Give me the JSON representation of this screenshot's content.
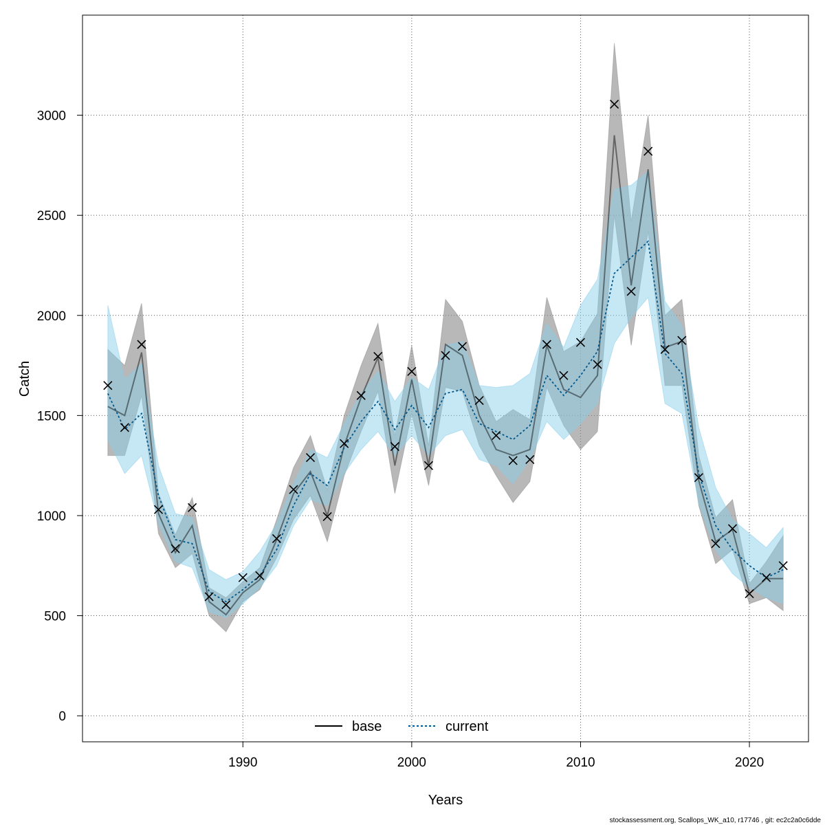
{
  "chart_data": {
    "type": "line",
    "xlabel": "Years",
    "ylabel": "Catch",
    "xlim": [
      1980.5,
      2023.5
    ],
    "ylim": [
      -130,
      3500
    ],
    "x_ticks": [
      1990,
      2000,
      2010,
      2020
    ],
    "y_ticks": [
      0,
      500,
      1000,
      1500,
      2000,
      2500,
      3000
    ],
    "grid": true,
    "legend_position": "bottom-center",
    "colors": {
      "base_line": "#000000",
      "base_band": "#8c8c8c",
      "current_line": "#00578c",
      "current_band": "#87ceeb",
      "observed_marker": "#000000",
      "grid": "#555555"
    },
    "x": [
      1982,
      1983,
      1984,
      1985,
      1986,
      1987,
      1988,
      1989,
      1990,
      1991,
      1992,
      1993,
      1994,
      1995,
      1996,
      1997,
      1998,
      1999,
      2000,
      2001,
      2002,
      2003,
      2004,
      2005,
      2006,
      2007,
      2008,
      2009,
      2010,
      2011,
      2012,
      2013,
      2014,
      2015,
      2016,
      2017,
      2018,
      2019,
      2020,
      2021,
      2022
    ],
    "observed": {
      "marker": "x",
      "values": [
        1650,
        1440,
        1855,
        1030,
        835,
        1040,
        595,
        555,
        690,
        700,
        885,
        1130,
        1290,
        995,
        1360,
        1600,
        1795,
        1345,
        1720,
        1250,
        1800,
        1845,
        1575,
        1400,
        1275,
        1280,
        1855,
        1700,
        1865,
        1755,
        3055,
        2120,
        2820,
        1830,
        1875,
        1190,
        860,
        935,
        610,
        690,
        750
      ]
    },
    "series": [
      {
        "name": "base",
        "line_style": "solid",
        "values": [
          1545,
          1500,
          1815,
          1010,
          815,
          950,
          570,
          505,
          615,
          680,
          880,
          1110,
          1220,
          1000,
          1350,
          1590,
          1790,
          1250,
          1680,
          1250,
          1855,
          1800,
          1500,
          1330,
          1300,
          1330,
          1850,
          1630,
          1590,
          1700,
          2900,
          2150,
          2730,
          1840,
          1870,
          1175,
          870,
          930,
          610,
          685,
          685
        ],
        "lower": [
          1300,
          1300,
          1600,
          910,
          740,
          810,
          500,
          420,
          570,
          630,
          790,
          980,
          1100,
          870,
          1200,
          1420,
          1620,
          1110,
          1510,
          1150,
          1640,
          1620,
          1350,
          1200,
          1065,
          1170,
          1640,
          1450,
          1330,
          1420,
          2500,
          1850,
          2420,
          1650,
          1650,
          1050,
          760,
          830,
          560,
          590,
          525
        ],
        "upper": [
          1830,
          1750,
          2060,
          1110,
          905,
          1090,
          640,
          590,
          670,
          740,
          980,
          1240,
          1400,
          1130,
          1500,
          1750,
          1960,
          1400,
          1850,
          1350,
          2080,
          1970,
          1650,
          1470,
          1530,
          1480,
          2090,
          1820,
          1870,
          2010,
          3360,
          2470,
          3000,
          2000,
          2080,
          1300,
          990,
          1080,
          660,
          770,
          900
        ]
      },
      {
        "name": "current",
        "line_style": "dotted",
        "values": [
          1610,
          1430,
          1510,
          1100,
          880,
          860,
          620,
          570,
          630,
          700,
          830,
          1050,
          1210,
          1150,
          1340,
          1470,
          1570,
          1430,
          1550,
          1440,
          1610,
          1630,
          1460,
          1420,
          1380,
          1450,
          1700,
          1600,
          1700,
          1820,
          2210,
          2290,
          2370,
          1810,
          1710,
          1210,
          950,
          830,
          750,
          690,
          730
        ],
        "lower": [
          1380,
          1210,
          1300,
          960,
          770,
          740,
          520,
          490,
          560,
          640,
          750,
          950,
          1080,
          1050,
          1210,
          1330,
          1420,
          1300,
          1400,
          1300,
          1400,
          1430,
          1280,
          1250,
          1160,
          1280,
          1470,
          1380,
          1460,
          1560,
          1860,
          1990,
          2090,
          1560,
          1510,
          1060,
          830,
          710,
          640,
          590,
          560
        ],
        "upper": [
          2050,
          1680,
          1760,
          1250,
          1010,
          990,
          730,
          680,
          720,
          820,
          960,
          1160,
          1330,
          1290,
          1460,
          1610,
          1720,
          1570,
          1690,
          1630,
          1850,
          1870,
          1650,
          1640,
          1650,
          1710,
          1960,
          1840,
          2050,
          2180,
          2630,
          2650,
          2720,
          2070,
          1950,
          1440,
          1140,
          980,
          910,
          840,
          940
        ]
      }
    ]
  },
  "footer_text": "stockassessment.org, Scallops_WK_a10, r17746 , git: ec2c2a0c6dde"
}
